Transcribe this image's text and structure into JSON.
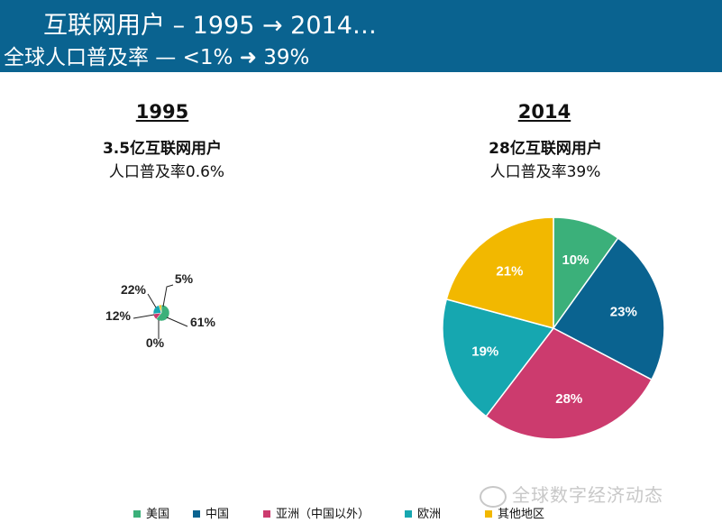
{
  "header": {
    "title": "互联网用户 – 1995 → 2014…",
    "subtitle": "全球人口普及率 — <1% ➜ 39%"
  },
  "panels": [
    {
      "year": "1995",
      "users": "3.5亿互联网用户",
      "rate": "人口普及率0.6%"
    },
    {
      "year": "2014",
      "users": "28亿互联网用户",
      "rate": "人口普及率39%"
    }
  ],
  "legend": [
    {
      "label": "美国",
      "color": "#3bb07a"
    },
    {
      "label": "中国",
      "color": "#0a6390"
    },
    {
      "label": "亚洲（中国以外）",
      "color": "#cc3b6e"
    },
    {
      "label": "欧洲",
      "color": "#16a7b0"
    },
    {
      "label": "其他地区",
      "color": "#f2b800"
    }
  ],
  "watermark": "全球数字经济动态",
  "chart_data": [
    {
      "type": "pie",
      "title": "1995",
      "categories": [
        "美国",
        "中国",
        "亚洲（中国以外）",
        "欧洲",
        "其他地区"
      ],
      "values": [
        61,
        0,
        12,
        22,
        5
      ],
      "labels": [
        "61%",
        "0%",
        "12%",
        "22%",
        "5%"
      ]
    },
    {
      "type": "pie",
      "title": "2014",
      "categories": [
        "美国",
        "中国",
        "亚洲（中国以外）",
        "欧洲",
        "其他地区"
      ],
      "values": [
        10,
        23,
        28,
        19,
        21
      ],
      "labels": [
        "10%",
        "23%",
        "28%",
        "19%",
        "21%"
      ]
    }
  ]
}
